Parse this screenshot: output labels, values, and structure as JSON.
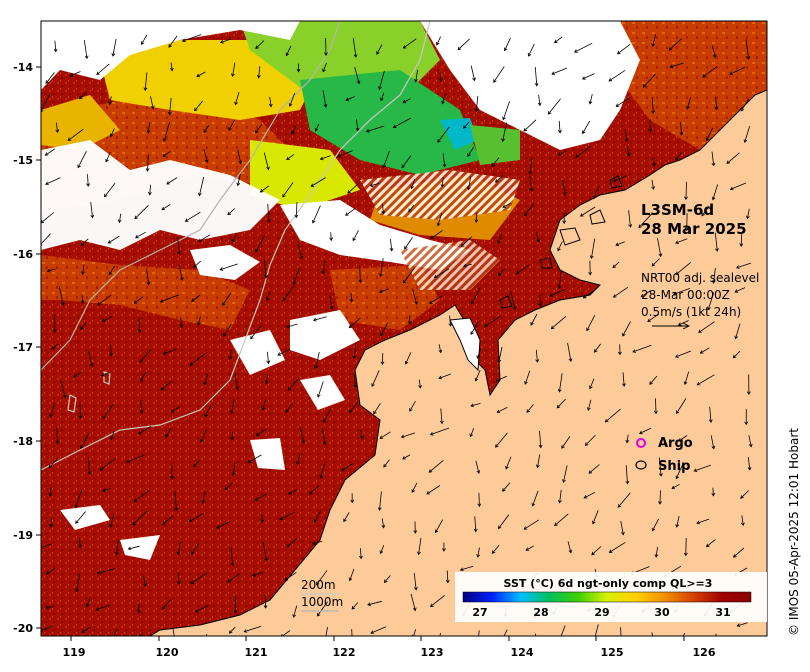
{
  "map": {
    "product_title": "L3SM-6d",
    "date": "28 Mar 2025",
    "current_info": {
      "line1": "NRT00 adj. sealevel",
      "line2": "28-Mar 00:00Z",
      "line3": "0.5m/s (1kt 24h)"
    },
    "legend": {
      "argo_label": "Argo",
      "ship_label": "Ship"
    },
    "depth_contours": {
      "shallow": "200m",
      "deep": "1000m"
    },
    "colorbar": {
      "title": "SST (°C) 6d ngt-only comp QL>=3",
      "ticks": [
        "27",
        "28",
        "29",
        "30",
        "31"
      ],
      "stops": [
        "#00007f",
        "#0020ff",
        "#00bfff",
        "#00c060",
        "#40d000",
        "#d8f000",
        "#ffd000",
        "#f09000",
        "#d84000",
        "#a00000",
        "#8b0000"
      ]
    },
    "credit": "© IMOS 05-Apr-2025 12:01 Hobart",
    "axes": {
      "lon_labels": [
        "119",
        "120",
        "121",
        "122",
        "123",
        "124",
        "125",
        "126"
      ],
      "lat_labels": [
        "-14",
        "-15",
        "-16",
        "-17",
        "-18",
        "-19",
        "-20"
      ]
    },
    "colors": {
      "land": "#fdcb99",
      "sea_warm": "#a80c00",
      "sea_hot": "#9a0000",
      "cloud": "#ffffff"
    }
  }
}
